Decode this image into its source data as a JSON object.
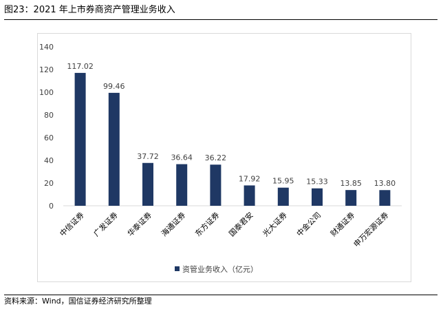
{
  "caption": "图23：2021 年上市券商资产管理业务收入",
  "source": "资料来源：Wind，国信证券经济研究所整理",
  "colors": {
    "bar": "#1f3864",
    "axis": "#d9d9d9",
    "text": "#404040"
  },
  "chart_data": {
    "type": "bar",
    "title": "",
    "xlabel": "",
    "ylabel": "",
    "ylim": [
      0,
      140
    ],
    "yticks": [
      0,
      20,
      40,
      60,
      80,
      100,
      120,
      140
    ],
    "grid": false,
    "legend": "bottom",
    "categories": [
      "中信证券",
      "广发证券",
      "华泰证券",
      "海通证券",
      "东方证券",
      "国泰君安",
      "光大证券",
      "中金公司",
      "财通证券",
      "申万宏源证券"
    ],
    "series": [
      {
        "name": "资管业务收入（亿元）",
        "values": [
          117.02,
          99.46,
          37.72,
          36.64,
          36.22,
          17.92,
          15.95,
          15.33,
          13.85,
          13.8
        ],
        "labels": [
          "117.02",
          "99.46",
          "37.72",
          "36.64",
          "36.22",
          "17.92",
          "15.95",
          "15.33",
          "13.85",
          "13.80"
        ]
      }
    ]
  }
}
